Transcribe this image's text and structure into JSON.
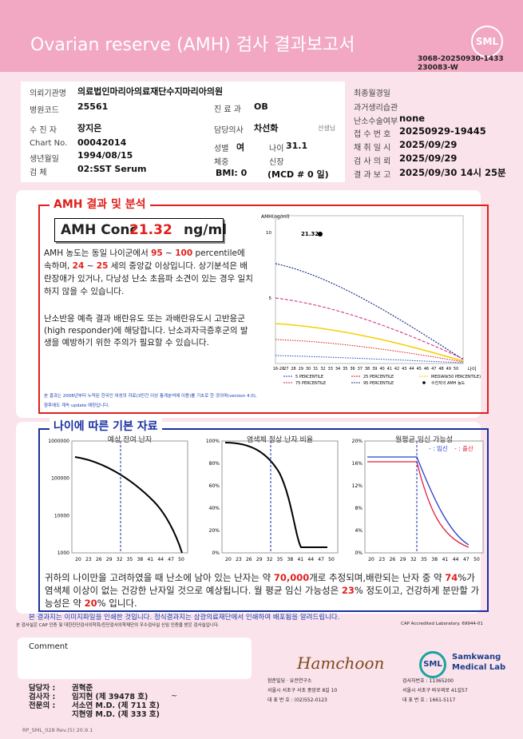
{
  "header": {
    "title": "Ovarian reserve (AMH) 검사 결과보고서",
    "logo": "SML",
    "report_id": [
      "3068-20250930-1433",
      "230083-W"
    ]
  },
  "info": {
    "left": [
      {
        "label": "의뢰기관명",
        "value": "의료법인마리아의료재단수지마리아의원"
      },
      {
        "label": "병원코드",
        "value": "25561"
      },
      {
        "label": "수 진 자",
        "value": "장지은"
      },
      {
        "label": "Chart No.",
        "value": "00042014"
      },
      {
        "label": "생년월일",
        "value": "1994/08/15"
      },
      {
        "label": "검 체",
        "value": "02:SST Serum"
      }
    ],
    "middle": {
      "dept_label": "진 료 과",
      "dept": "OB",
      "doctor_label": "담당의사",
      "doctor": "차선화",
      "doctor_suffix": "선생님",
      "sex_label": "성별",
      "sex": "여",
      "age_label": "나이",
      "age": "31.1",
      "weight_label": "체중",
      "height_label": "신장",
      "bmi": "BMI: 0",
      "mcd": "(MCD # 0 일)"
    },
    "right": [
      {
        "label": "최종월경일",
        "value": ""
      },
      {
        "label": "과거생리습관",
        "value": ""
      },
      {
        "label": "난소수술여부",
        "value": "none"
      },
      {
        "label": "접 수 번 호",
        "value": "20250929-19445"
      },
      {
        "label": "채 취 일 시",
        "value": "2025/09/29"
      },
      {
        "label": "검 사 의 뢰",
        "value": "2025/09/29"
      },
      {
        "label": "결 과 보 고",
        "value": "2025/09/30 14시 25분"
      }
    ]
  },
  "amh": {
    "title": "AMH 결과 및 분석",
    "result_label": "AMH Conc",
    "result_value": "21.32",
    "result_unit": "ng/ml",
    "paragraph1": [
      "AMH 농도는 동일 나이군에서 ",
      "95",
      " ~ ",
      "100",
      " percentile에 속하며, ",
      "24",
      " ~ ",
      "25",
      " 세의 중앙값 이상입니다. 상기분석은 배란장애가 있거나, 다낭성 난소 초음파 소견이 있는 경우 일치하지 않을 수 있습니다."
    ],
    "paragraph2": "난소반응 예측 결과 배란유도 또는 과배란유도시 고반응군 (high responder)에 해당합니다. 난소과자극증후군의 발생을 예방하기 위한 주의가 필요할 수 있습니다.",
    "chart": {
      "ylabel": "AMH(ng/ml)",
      "yticks": [
        "10",
        "5"
      ],
      "xticks": [
        "16-26",
        "27",
        "28",
        "29",
        "30",
        "31",
        "32",
        "33",
        "34",
        "35",
        "36",
        "37",
        "38",
        "39",
        "40",
        "41",
        "42",
        "43",
        "44",
        "45",
        "46",
        "47",
        "48",
        "49",
        "50"
      ],
      "xlabel": "나이",
      "point_label": "21.32",
      "legend": [
        "5 PERCENTILE",
        "25 PERCENTILE",
        "MEDIAN(50 PERCENTILE)",
        "75 PERCENTILE",
        "95 PERCENTILE",
        "수진자의 AMH 농도"
      ]
    },
    "footnote": [
      "본 결과는 2008년부터 누적된 한국인 여성의 자료(3만건 이상 통계분석에 이용)를 기초로 한 것이며(version 4.0),",
      "향후에도 계속 update 예정입니다."
    ]
  },
  "age": {
    "title": "나이에 따른 기본 자료",
    "charts": [
      {
        "title": "예상 잔여 난자",
        "yticks": [
          "1000",
          "10000",
          "100000",
          "1000000"
        ],
        "xticks": [
          "20",
          "23",
          "26",
          "29",
          "32",
          "35",
          "38",
          "41",
          "44",
          "47",
          "50"
        ]
      },
      {
        "title": "염색체 정상 난자 비율",
        "yticks": [
          "0%",
          "20%",
          "40%",
          "60%",
          "80%",
          "100%"
        ],
        "xticks": [
          "20",
          "23",
          "26",
          "29",
          "32",
          "35",
          "38",
          "41",
          "44",
          "47",
          "50"
        ]
      },
      {
        "title": "월평균 임신 가능성",
        "legend": [
          "- : 임신",
          "- : 출산"
        ],
        "yticks": [
          "0%",
          "4%",
          "8%",
          "12%",
          "16%",
          "20%"
        ],
        "xticks": [
          "20",
          "23",
          "26",
          "29",
          "32",
          "35",
          "38",
          "41",
          "44",
          "47",
          "50"
        ]
      }
    ],
    "summary": [
      "귀하의 나이만을 고려하였을 때 난소에 남아 있는 난자는 약 ",
      "70,000",
      "개로 추정되며,배란되는 난자 중 약 ",
      "74",
      "%가 염색체 이상이 없는 건강한 난자일 것으로 예상됩니다. 월 평균 임신 가능성은 ",
      "23",
      "% 정도이고, 건강하게 분만할 가능성은 약 ",
      "20",
      "% 입니다."
    ]
  },
  "notice": "본 결과지는 이미지파일을 인쇄한 것입니다. 정식결과지는 삼광의료재단에서 인쇄하여 배포됨을 알려드립니다.",
  "cert": "본 검사실은 CAP 인증 및 대한진단검사의학회/진단검사의학재단의 우수검사실 신임 인증을 받은 검사실입니다.",
  "cap": "CAP Accredited Laboratory. 69944-01",
  "comment_label": "Comment",
  "signatures": [
    {
      "role": "담당자 :",
      "name": "권혁준"
    },
    {
      "role": "검사자 :",
      "name": "임지현 (제 39478 호)"
    },
    {
      "role": "전문의 :",
      "name": "서소연 M.D. (제 711 호)"
    },
    {
      "role": "",
      "name": "지현영 M.D. (제 333 호)"
    }
  ],
  "hamchoon": {
    "name": "Hamchoon",
    "line1": "함춘빌딩 · 유전연구소",
    "line2": "서울시 서초구 서초 중앙로 8길 10",
    "line3": "대 표 번 호 : (02)552-0123"
  },
  "sml": {
    "logo": "SML",
    "name1": "Samkwang",
    "name2": "Medical Lab",
    "line1": "검사자번호 : 11365200",
    "line2": "서울시 서초구 바우뫼로 41길57",
    "line3": "대 표 번 호 : 1661-5117"
  },
  "footer": "RP_SML_028 Rev.(5) 20.9.1"
}
